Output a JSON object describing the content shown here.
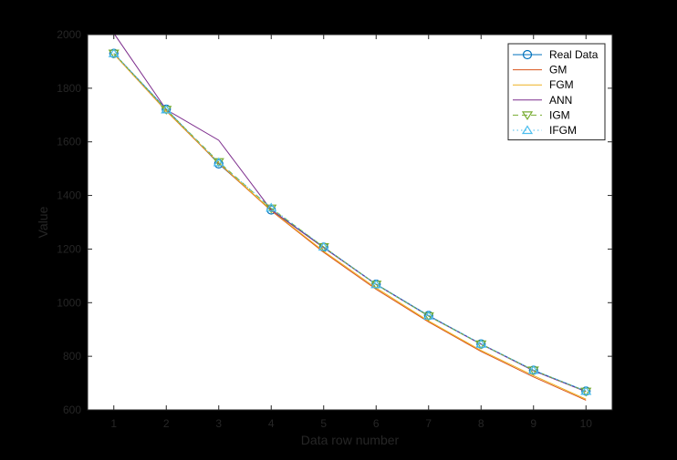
{
  "chart_data": {
    "type": "line",
    "title": "",
    "xlabel": "Data row number",
    "ylabel": "Value",
    "x": [
      1,
      2,
      3,
      4,
      5,
      6,
      7,
      8,
      9,
      10
    ],
    "xlim": [
      0.5,
      10.5
    ],
    "ylim": [
      600,
      2000
    ],
    "xticks": [
      "1",
      "2",
      "3",
      "4",
      "5",
      "6",
      "7",
      "8",
      "9",
      "10"
    ],
    "yticks": [
      "600",
      "800",
      "1000",
      "1200",
      "1400",
      "1600",
      "1800",
      "2000"
    ],
    "grid": false,
    "legend_position": "top-right",
    "series": [
      {
        "name": "Real Data",
        "color": "#0072BD",
        "marker": "circle",
        "line": "solid",
        "values": [
          1930,
          1722,
          1518,
          1346,
          1207,
          1069,
          952,
          846,
          748,
          670
        ]
      },
      {
        "name": "GM",
        "color": "#D95319",
        "marker": "none",
        "line": "solid",
        "values": [
          1928,
          1715,
          1520,
          1343,
          1188,
          1050,
          928,
          818,
          723,
          636
        ]
      },
      {
        "name": "FGM",
        "color": "#EDB120",
        "marker": "none",
        "line": "solid",
        "values": [
          1928,
          1716,
          1522,
          1345,
          1192,
          1055,
          932,
          822,
          728,
          640
        ]
      },
      {
        "name": "ANN",
        "color": "#7E2F8E",
        "marker": "none",
        "line": "solid",
        "values": [
          2005,
          1720,
          1606,
          1346,
          1205,
          1068,
          950,
          845,
          746,
          668
        ]
      },
      {
        "name": "IGM",
        "color": "#77AC30",
        "marker": "triangle-down",
        "line": "dashed",
        "values": [
          1930,
          1720,
          1525,
          1352,
          1208,
          1068,
          950,
          845,
          748,
          669
        ]
      },
      {
        "name": "IFGM",
        "color": "#4DBEEE",
        "marker": "triangle-up",
        "line": "dotted",
        "values": [
          1930,
          1720,
          1523,
          1354,
          1208,
          1068,
          951,
          846,
          748,
          670
        ]
      }
    ]
  }
}
